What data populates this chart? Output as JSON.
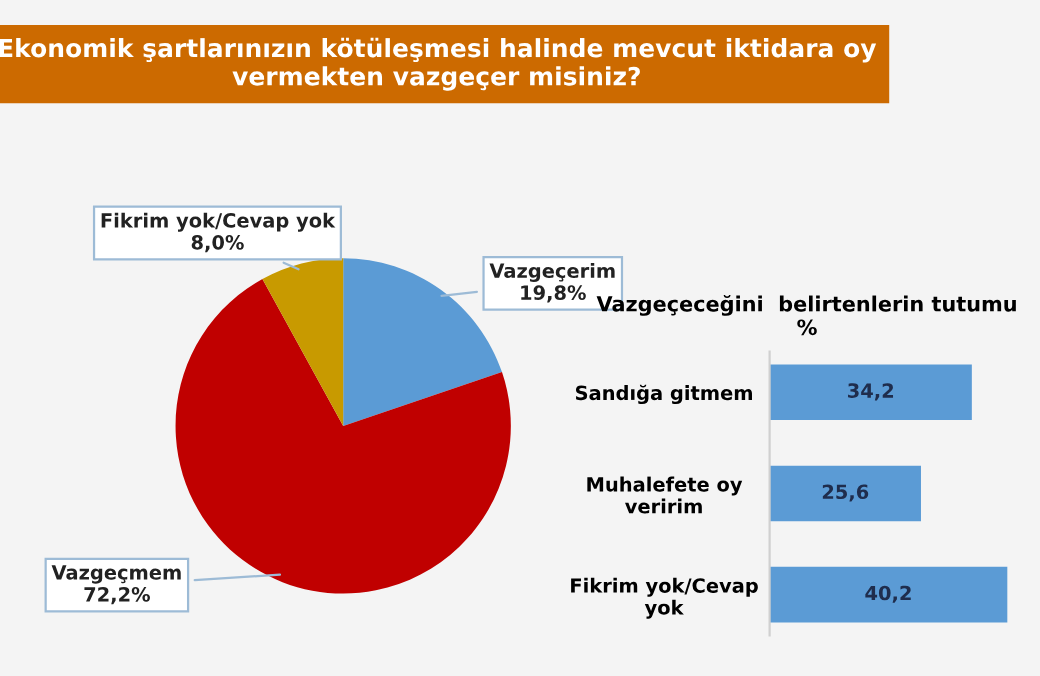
{
  "chart_data": [
    {
      "type": "pie",
      "title": "Ekonomik şartlarınızın kötüleşmesi halinde mevcut iktidara oy\nvermekten vazgeçer misiniz?",
      "categories": [
        "Vazgeçerim",
        "Vazgeçmem",
        "Fikrim yok/Cevap yok"
      ],
      "values": [
        19.8,
        72.2,
        8.0
      ],
      "colors": [
        "#5b9bd5",
        "#c00000",
        "#c89a00"
      ],
      "value_labels": [
        "19,8%",
        "72,2%",
        "8,0%"
      ]
    },
    {
      "type": "bar",
      "orientation": "horizontal",
      "title": "Vazgeçeceğini  belirtenlerin tutumu\n%",
      "categories": [
        "Sandığa gitmem",
        "Muhalefete oy\nveririm",
        "Fikrim yok/Cevap\nyok"
      ],
      "values": [
        34.2,
        25.6,
        40.2
      ],
      "color": "#5b9bd5",
      "value_labels": [
        "34,2",
        "25,6",
        "40,2"
      ]
    }
  ]
}
